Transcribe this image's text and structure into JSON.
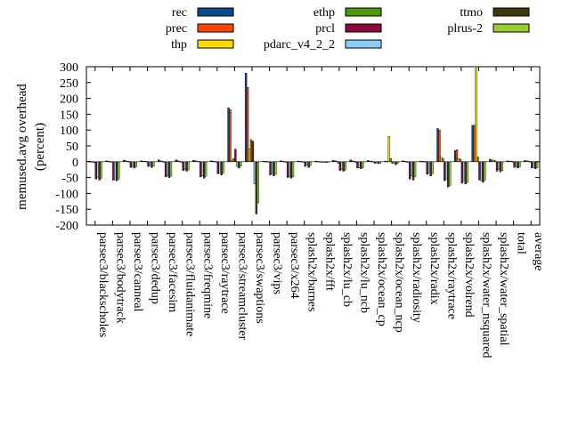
{
  "chart_data": {
    "type": "bar",
    "ylabel": "memused.avg overhead (percent)",
    "ylabel_lines": [
      "memused.avg overhead",
      "(percent)"
    ],
    "ylim": [
      -200,
      300
    ],
    "yticks": [
      -200,
      -150,
      -100,
      -50,
      0,
      50,
      100,
      150,
      200,
      250,
      300
    ],
    "legend_position": "top",
    "categories": [
      "parsec3/blackscholes",
      "parsec3/bodytrack",
      "parsec3/canneal",
      "parsec3/dedup",
      "parsec3/facesim",
      "parsec3/fluidanimate",
      "parsec3/freqmine",
      "parsec3/raytrace",
      "parsec3/streamcluster",
      "parsec3/swaptions",
      "parsec3/vips",
      "parsec3/x264",
      "splash2x/barnes",
      "splash2x/fft",
      "splash2x/lu_cb",
      "splash2x/lu_ncb",
      "splash2x/ocean_cp",
      "splash2x/ocean_ncp",
      "splash2x/radiosity",
      "splash2x/radix",
      "splash2x/raytrace",
      "splash2x/volrend",
      "splash2x/water_nsquared",
      "splash2x/water_spatial",
      "total",
      "average"
    ],
    "series": [
      {
        "name": "rec",
        "color": "#08488c",
        "values": [
          2,
          3,
          5,
          3,
          6,
          6,
          5,
          3,
          170,
          280,
          2,
          3,
          2,
          2,
          5,
          6,
          4,
          2,
          3,
          2,
          105,
          35,
          115,
          8,
          3,
          4
        ]
      },
      {
        "name": "prec",
        "color": "#ff4500",
        "values": [
          1,
          2,
          3,
          2,
          3,
          3,
          3,
          2,
          165,
          235,
          1,
          2,
          1,
          1,
          3,
          3,
          2,
          1,
          2,
          1,
          100,
          38,
          115,
          6,
          2,
          3
        ]
      },
      {
        "name": "thp",
        "color": "#ffd700",
        "values": [
          -1,
          1,
          2,
          2,
          2,
          2,
          2,
          1,
          5,
          40,
          1,
          1,
          1,
          1,
          2,
          2,
          2,
          80,
          1,
          1,
          15,
          10,
          295,
          5,
          2,
          2
        ]
      },
      {
        "name": "ethp",
        "color": "#4e9a06",
        "values": [
          -3,
          0,
          1,
          1,
          -2,
          -2,
          1,
          -2,
          10,
          70,
          -1,
          -2,
          0,
          0,
          -5,
          -3,
          -1,
          10,
          -2,
          1,
          10,
          8,
          15,
          3,
          1,
          1
        ]
      },
      {
        "name": "prcl",
        "color": "#8b0a3a",
        "values": [
          -55,
          -58,
          -18,
          -15,
          -48,
          -28,
          -48,
          -38,
          40,
          65,
          -42,
          -50,
          -15,
          -2,
          -28,
          -20,
          -5,
          -5,
          -55,
          -40,
          -60,
          -68,
          -58,
          -30,
          -18,
          -20
        ]
      },
      {
        "name": "pdarc_v4_2_2",
        "color": "#87cefa",
        "values": [
          -50,
          -58,
          -15,
          -12,
          -45,
          -25,
          -45,
          -35,
          -15,
          -70,
          -38,
          -48,
          -10,
          -1,
          -25,
          -18,
          -4,
          -4,
          -45,
          -35,
          -55,
          -60,
          -60,
          -25,
          -15,
          -18
        ]
      },
      {
        "name": "ttmo",
        "color": "#3b3c0e",
        "values": [
          -58,
          -60,
          -20,
          -18,
          -50,
          -30,
          -52,
          -42,
          -20,
          -165,
          -45,
          -52,
          -18,
          -3,
          -30,
          -22,
          -6,
          -10,
          -58,
          -45,
          -80,
          -70,
          -65,
          -32,
          -20,
          -22
        ]
      },
      {
        "name": "plrus-2",
        "color": "#9acd32",
        "values": [
          -52,
          -55,
          -16,
          -14,
          -46,
          -26,
          -46,
          -36,
          -14,
          -130,
          -40,
          -48,
          -12,
          -2,
          -26,
          -19,
          -5,
          -6,
          -48,
          -38,
          -75,
          -65,
          -58,
          -28,
          -16,
          -19
        ]
      }
    ]
  }
}
